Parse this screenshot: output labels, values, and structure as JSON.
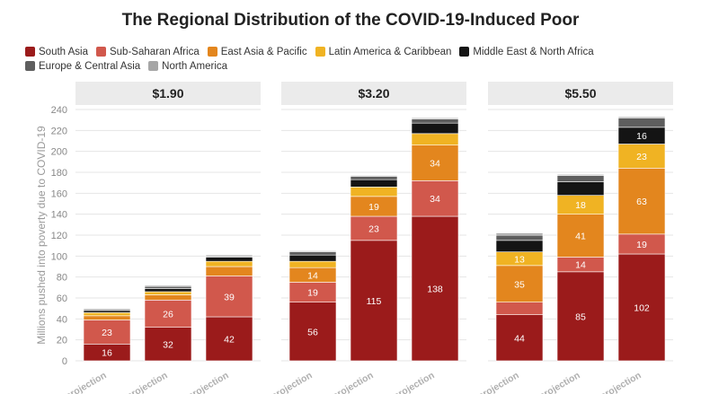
{
  "chart_data": {
    "type": "bar",
    "stacked": true,
    "title": "The Regional Distribution of the COVID-19-Induced Poor",
    "ylabel": "Millions pushed into poverty due to COVID-19",
    "ylim": [
      0,
      240
    ],
    "yticks": [
      0,
      20,
      40,
      60,
      80,
      100,
      120,
      140,
      160,
      180,
      200,
      220,
      240
    ],
    "grid": true,
    "legend_position": "top-left",
    "categories": [
      "April projection",
      "Baseline projection",
      "Downside projection"
    ],
    "category_labels_visible": [
      "ril projection",
      "line projection",
      "ide projection"
    ],
    "facets": [
      "$1.90",
      "$3.20",
      "$5.50"
    ],
    "series": [
      {
        "name": "South Asia",
        "color": "#9b1b1b",
        "values": [
          [
            16,
            32,
            42
          ],
          [
            56,
            115,
            138
          ],
          [
            44,
            85,
            102
          ]
        ],
        "labels": [
          [
            "16",
            "32",
            "42"
          ],
          [
            "56",
            "115",
            "138"
          ],
          [
            "44",
            "85",
            "102"
          ]
        ]
      },
      {
        "name": "Sub-Saharan Africa",
        "color": "#d1584c",
        "values": [
          [
            23,
            26,
            39
          ],
          [
            19,
            23,
            34
          ],
          [
            12,
            14,
            19
          ]
        ],
        "labels": [
          [
            "23",
            "26",
            "39"
          ],
          [
            "19",
            "23",
            "34"
          ],
          [
            "",
            "14",
            "19"
          ]
        ]
      },
      {
        "name": "East Asia & Pacific",
        "color": "#e3861e",
        "values": [
          [
            4,
            5,
            9
          ],
          [
            14,
            19,
            34
          ],
          [
            35,
            41,
            63
          ]
        ],
        "labels": [
          [
            "",
            "",
            ""
          ],
          [
            "14",
            "19",
            "34"
          ],
          [
            "35",
            "41",
            "63"
          ]
        ]
      },
      {
        "name": "Latin America & Caribbean",
        "color": "#f0b323",
        "values": [
          [
            3,
            3,
            5
          ],
          [
            6,
            9,
            11
          ],
          [
            13,
            18,
            23
          ]
        ],
        "labels": [
          [
            "",
            "",
            ""
          ],
          [
            "",
            "",
            ""
          ],
          [
            "13",
            "18",
            "23"
          ]
        ]
      },
      {
        "name": "Middle East & North Africa",
        "color": "#141414",
        "values": [
          [
            2,
            3,
            4
          ],
          [
            6,
            7,
            10
          ],
          [
            11,
            13,
            16
          ]
        ],
        "labels": [
          [
            "",
            "",
            ""
          ],
          [
            "",
            "",
            ""
          ],
          [
            "",
            "",
            "16"
          ]
        ]
      },
      {
        "name": "Europe & Central Asia",
        "color": "#5e5e5e",
        "values": [
          [
            1,
            2,
            1
          ],
          [
            3,
            3,
            4
          ],
          [
            5,
            6,
            9
          ]
        ],
        "labels": [
          [
            "",
            "",
            ""
          ],
          [
            "",
            "",
            ""
          ],
          [
            "",
            "",
            ""
          ]
        ]
      },
      {
        "name": "North America",
        "color": "#a6a6a6",
        "values": [
          [
            1,
            1,
            1
          ],
          [
            1,
            1,
            1
          ],
          [
            2,
            1,
            1
          ]
        ],
        "labels": [
          [
            "",
            "",
            ""
          ],
          [
            "",
            "",
            ""
          ],
          [
            "",
            "",
            ""
          ]
        ]
      }
    ]
  }
}
